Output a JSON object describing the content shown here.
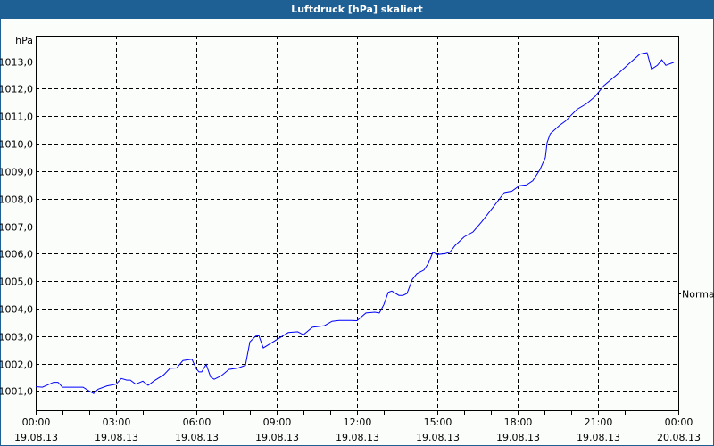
{
  "title": "Luftdruck [hPa] skaliert",
  "colors": {
    "titlebar": "#1e5f94",
    "line": "#0000ff",
    "grid": "#000000"
  },
  "chart_data": {
    "type": "line",
    "title": "Luftdruck [hPa] skaliert",
    "ylabel": "hPa",
    "xlabel": "",
    "ylim": [
      1000.3,
      1013.93
    ],
    "xlim": [
      "19.08.13 00:00",
      "20.08.13 00:00"
    ],
    "grid": true,
    "y_ticks": [
      "1001,0",
      "1002,0",
      "1003,0",
      "1004,0",
      "1005,0",
      "1006,0",
      "1007,0",
      "1008,0",
      "1009,0",
      "1010,0",
      "1011,0",
      "1012,0",
      "1013,0"
    ],
    "x_ticks": [
      {
        "time": "00:00",
        "date": "19.08.13"
      },
      {
        "time": "03:00",
        "date": "19.08.13"
      },
      {
        "time": "06:00",
        "date": "19.08.13"
      },
      {
        "time": "09:00",
        "date": "19.08.13"
      },
      {
        "time": "12:00",
        "date": "19.08.13"
      },
      {
        "time": "15:00",
        "date": "19.08.13"
      },
      {
        "time": "18:00",
        "date": "19.08.13"
      },
      {
        "time": "21:00",
        "date": "19.08.13"
      },
      {
        "time": "00:00",
        "date": "20.08.13"
      }
    ],
    "reference_marker": {
      "label": "Normal",
      "value": 1004.56
    },
    "series": [
      {
        "points": [
          [
            "00:00",
            1001.16
          ],
          [
            "00:15",
            1001.14
          ],
          [
            "00:40",
            1001.32
          ],
          [
            "00:50",
            1001.32
          ],
          [
            "01:00",
            1001.14
          ],
          [
            "01:46",
            1001.14
          ],
          [
            "02:00",
            1001.0
          ],
          [
            "02:10",
            1000.91
          ],
          [
            "02:20",
            1001.07
          ],
          [
            "02:40",
            1001.19
          ],
          [
            "03:00",
            1001.25
          ],
          [
            "03:12",
            1001.46
          ],
          [
            "03:24",
            1001.4
          ],
          [
            "03:32",
            1001.4
          ],
          [
            "03:44",
            1001.25
          ],
          [
            "04:00",
            1001.36
          ],
          [
            "04:12",
            1001.21
          ],
          [
            "04:26",
            1001.38
          ],
          [
            "04:47",
            1001.59
          ],
          [
            "05:01",
            1001.83
          ],
          [
            "05:16",
            1001.84
          ],
          [
            "05:30",
            1002.11
          ],
          [
            "05:50",
            1002.16
          ],
          [
            "06:00",
            1001.81
          ],
          [
            "06:06",
            1001.7
          ],
          [
            "06:12",
            1001.7
          ],
          [
            "06:22",
            1001.97
          ],
          [
            "06:32",
            1001.51
          ],
          [
            "06:40",
            1001.43
          ],
          [
            "06:56",
            1001.56
          ],
          [
            "07:13",
            1001.79
          ],
          [
            "07:34",
            1001.84
          ],
          [
            "07:50",
            1001.94
          ],
          [
            "08:00",
            1002.79
          ],
          [
            "08:13",
            1003.0
          ],
          [
            "08:20",
            1003.02
          ],
          [
            "08:30",
            1002.57
          ],
          [
            "09:00",
            1002.87
          ],
          [
            "09:26",
            1003.13
          ],
          [
            "09:47",
            1003.16
          ],
          [
            "10:00",
            1003.05
          ],
          [
            "10:20",
            1003.32
          ],
          [
            "10:47",
            1003.38
          ],
          [
            "11:04",
            1003.54
          ],
          [
            "11:20",
            1003.57
          ],
          [
            "11:46",
            1003.57
          ],
          [
            "12:00",
            1003.56
          ],
          [
            "12:20",
            1003.84
          ],
          [
            "12:40",
            1003.87
          ],
          [
            "12:50",
            1003.84
          ],
          [
            "13:00",
            1004.14
          ],
          [
            "13:10",
            1004.59
          ],
          [
            "13:18",
            1004.64
          ],
          [
            "13:34",
            1004.48
          ],
          [
            "13:43",
            1004.48
          ],
          [
            "13:52",
            1004.55
          ],
          [
            "14:04",
            1005.06
          ],
          [
            "14:14",
            1005.27
          ],
          [
            "14:30",
            1005.4
          ],
          [
            "14:40",
            1005.65
          ],
          [
            "14:50",
            1006.05
          ],
          [
            "15:00",
            1005.97
          ],
          [
            "15:17",
            1006.0
          ],
          [
            "15:28",
            1006.05
          ],
          [
            "15:40",
            1006.3
          ],
          [
            "16:00",
            1006.61
          ],
          [
            "16:20",
            1006.79
          ],
          [
            "16:40",
            1007.17
          ],
          [
            "17:06",
            1007.71
          ],
          [
            "17:30",
            1008.22
          ],
          [
            "17:47",
            1008.27
          ],
          [
            "18:04",
            1008.47
          ],
          [
            "18:20",
            1008.5
          ],
          [
            "18:34",
            1008.65
          ],
          [
            "18:50",
            1009.06
          ],
          [
            "19:02",
            1009.49
          ],
          [
            "19:06",
            1010.04
          ],
          [
            "19:13",
            1010.36
          ],
          [
            "19:34",
            1010.67
          ],
          [
            "19:47",
            1010.82
          ],
          [
            "20:13",
            1011.25
          ],
          [
            "20:34",
            1011.45
          ],
          [
            "20:53",
            1011.71
          ],
          [
            "21:13",
            1012.11
          ],
          [
            "21:46",
            1012.56
          ],
          [
            "22:13",
            1012.96
          ],
          [
            "22:34",
            1013.26
          ],
          [
            "22:50",
            1013.31
          ],
          [
            "23:00",
            1012.71
          ],
          [
            "23:13",
            1012.85
          ],
          [
            "23:23",
            1013.05
          ],
          [
            "23:32",
            1012.85
          ],
          [
            "23:50",
            1012.96
          ]
        ]
      }
    ]
  }
}
